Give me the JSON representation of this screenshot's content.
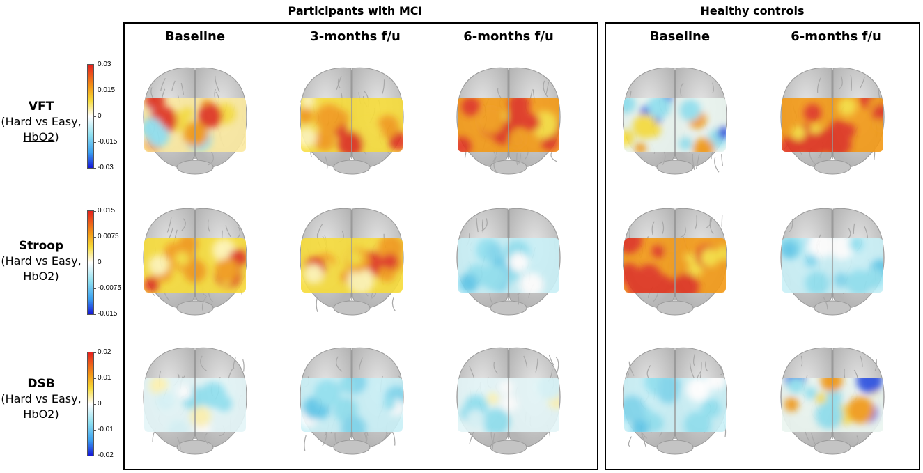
{
  "groups": [
    {
      "title": "Participants with MCI",
      "columns": [
        "Baseline",
        "3-months f/u",
        "6-months f/u"
      ]
    },
    {
      "title": "Healthy controls",
      "columns": [
        "Baseline",
        "6-months f/u"
      ]
    }
  ],
  "rows": [
    {
      "task": "VFT",
      "contrast": "(Hard vs Easy,",
      "measure": "HbO2",
      "close": ")",
      "colorbar": {
        "ticks": [
          "0.03",
          "0.015",
          "0",
          "-0.015",
          "-0.03"
        ],
        "top_color": "#e6211e",
        "bottom_color": "#1518d8"
      }
    },
    {
      "task": "Stroop",
      "contrast": "(Hard vs Easy,",
      "measure": "HbO2",
      "close": ")",
      "colorbar": {
        "ticks": [
          "0.015",
          "0.0075",
          "0",
          "-0.0075",
          "-0.015"
        ],
        "top_color": "#e6211e",
        "bottom_color": "#1518d8"
      }
    },
    {
      "task": "DSB",
      "contrast": "(Hard vs Easy,",
      "measure": "HbO2",
      "close": ")",
      "colorbar": {
        "ticks": [
          "0.02",
          "0.01",
          "0",
          "-0.01",
          "-0.02"
        ],
        "top_color": "#e6211e",
        "bottom_color": "#1518d8"
      }
    }
  ],
  "maps": [
    [
      "warm-mixed",
      "warm",
      "warm-strong",
      "cool-mixed",
      "warm-strong"
    ],
    [
      "warm",
      "warm",
      "cool",
      "warm-strong",
      "cool"
    ],
    [
      "cool-light",
      "cool",
      "cool-light",
      "cool",
      "cool-mixed"
    ]
  ],
  "palette": {
    "red": "#e0301e",
    "orange": "#f39a16",
    "yellow": "#f7dc3a",
    "white": "#f6f6f2",
    "cyan": "#8fe0f0",
    "blue": "#2c4fe0",
    "brain": "#cfcfcf"
  }
}
